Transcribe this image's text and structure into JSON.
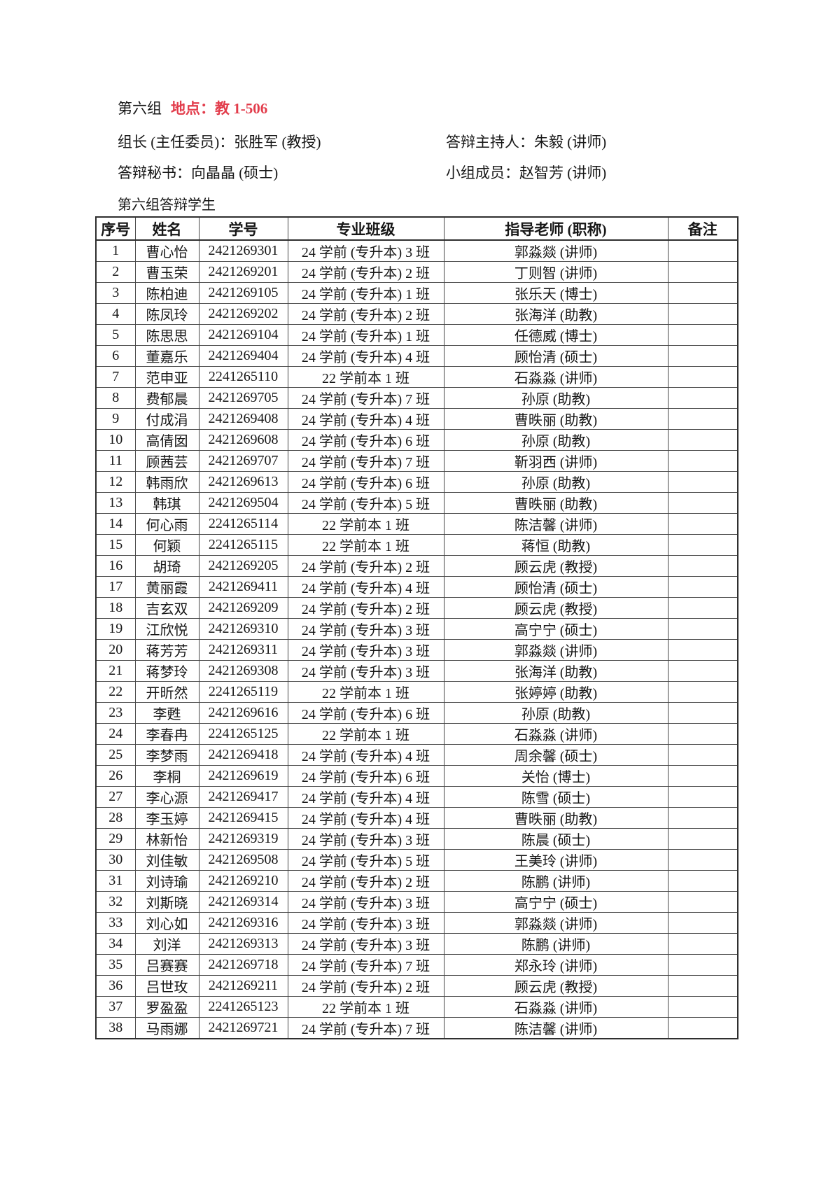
{
  "colors": {
    "location_red": "#e23c4b"
  },
  "header": {
    "group_label": "第六组",
    "location": "地点：教 1-506",
    "leader": "组长 (主任委员)：张胜军 (教授)",
    "host": "答辩主持人：朱毅 (讲师)",
    "secretary": "答辩秘书：向晶晶 (硕士)",
    "member": "小组成员：赵智芳 (讲师)",
    "table_title": "第六组答辩学生"
  },
  "table": {
    "headers": [
      "序号",
      "姓名",
      "学号",
      "专业班级",
      "指导老师 (职称)",
      "备注"
    ],
    "rows": [
      [
        "1",
        "曹心怡",
        "2421269301",
        "24 学前 (专升本) 3 班",
        "郭淼燚 (讲师)",
        ""
      ],
      [
        "2",
        "曹玉荣",
        "2421269201",
        "24 学前 (专升本) 2 班",
        "丁则智 (讲师)",
        ""
      ],
      [
        "3",
        "陈柏迪",
        "2421269105",
        "24 学前 (专升本) 1 班",
        "张乐天 (博士)",
        ""
      ],
      [
        "4",
        "陈凤玲",
        "2421269202",
        "24 学前 (专升本) 2 班",
        "张海洋 (助教)",
        ""
      ],
      [
        "5",
        "陈思思",
        "2421269104",
        "24 学前 (专升本) 1 班",
        "任德威 (博士)",
        ""
      ],
      [
        "6",
        "董嘉乐",
        "2421269404",
        "24 学前 (专升本) 4 班",
        "顾怡清 (硕士)",
        ""
      ],
      [
        "7",
        "范申亚",
        "2241265110",
        "22 学前本 1 班",
        "石淼淼 (讲师)",
        ""
      ],
      [
        "8",
        "费郁晨",
        "2421269705",
        "24 学前 (专升本) 7 班",
        "孙原 (助教)",
        ""
      ],
      [
        "9",
        "付成涓",
        "2421269408",
        "24 学前 (专升本) 4 班",
        "曹昳丽 (助教)",
        ""
      ],
      [
        "10",
        "高倩囡",
        "2421269608",
        "24 学前 (专升本) 6 班",
        "孙原 (助教)",
        ""
      ],
      [
        "11",
        "顾茜芸",
        "2421269707",
        "24 学前 (专升本) 7 班",
        "靳羽西 (讲师)",
        ""
      ],
      [
        "12",
        "韩雨欣",
        "2421269613",
        "24 学前 (专升本) 6 班",
        "孙原 (助教)",
        ""
      ],
      [
        "13",
        "韩琪",
        "2421269504",
        "24 学前 (专升本) 5 班",
        "曹昳丽 (助教)",
        ""
      ],
      [
        "14",
        "何心雨",
        "2241265114",
        "22 学前本 1 班",
        "陈洁馨 (讲师)",
        ""
      ],
      [
        "15",
        "何颖",
        "2241265115",
        "22 学前本 1 班",
        "蒋恒 (助教)",
        ""
      ],
      [
        "16",
        "胡琦",
        "2421269205",
        "24 学前 (专升本) 2 班",
        "顾云虎 (教授)",
        ""
      ],
      [
        "17",
        "黄丽霞",
        "2421269411",
        "24 学前 (专升本) 4 班",
        "顾怡清 (硕士)",
        ""
      ],
      [
        "18",
        "吉玄双",
        "2421269209",
        "24 学前 (专升本) 2 班",
        "顾云虎 (教授)",
        ""
      ],
      [
        "19",
        "江欣悦",
        "2421269310",
        "24 学前 (专升本) 3 班",
        "高宁宁 (硕士)",
        ""
      ],
      [
        "20",
        "蒋芳芳",
        "2421269311",
        "24 学前 (专升本) 3 班",
        "郭淼燚 (讲师)",
        ""
      ],
      [
        "21",
        "蒋梦玲",
        "2421269308",
        "24 学前 (专升本) 3 班",
        "张海洋 (助教)",
        ""
      ],
      [
        "22",
        "开昕然",
        "2241265119",
        "22 学前本 1 班",
        "张婷婷 (助教)",
        ""
      ],
      [
        "23",
        "李甦",
        "2421269616",
        "24 学前 (专升本) 6 班",
        "孙原 (助教)",
        ""
      ],
      [
        "24",
        "李春冉",
        "2241265125",
        "22 学前本 1 班",
        "石淼淼 (讲师)",
        ""
      ],
      [
        "25",
        "李梦雨",
        "2421269418",
        "24 学前 (专升本) 4 班",
        "周余馨 (硕士)",
        ""
      ],
      [
        "26",
        "李桐",
        "2421269619",
        "24 学前 (专升本) 6 班",
        "关怡 (博士)",
        ""
      ],
      [
        "27",
        "李心源",
        "2421269417",
        "24 学前 (专升本) 4 班",
        "陈雪 (硕士)",
        ""
      ],
      [
        "28",
        "李玉婷",
        "2421269415",
        "24 学前 (专升本) 4 班",
        "曹昳丽 (助教)",
        ""
      ],
      [
        "29",
        "林新怡",
        "2421269319",
        "24 学前 (专升本) 3 班",
        "陈晨 (硕士)",
        ""
      ],
      [
        "30",
        "刘佳敏",
        "2421269508",
        "24 学前 (专升本) 5 班",
        "王美玲 (讲师)",
        ""
      ],
      [
        "31",
        "刘诗瑜",
        "2421269210",
        "24 学前 (专升本) 2 班",
        "陈鹏 (讲师)",
        ""
      ],
      [
        "32",
        "刘斯晓",
        "2421269314",
        "24 学前 (专升本) 3 班",
        "高宁宁 (硕士)",
        ""
      ],
      [
        "33",
        "刘心如",
        "2421269316",
        "24 学前 (专升本) 3 班",
        "郭淼燚 (讲师)",
        ""
      ],
      [
        "34",
        "刘洋",
        "2421269313",
        "24 学前 (专升本) 3 班",
        "陈鹏 (讲师)",
        ""
      ],
      [
        "35",
        "吕赛赛",
        "2421269718",
        "24 学前 (专升本) 7 班",
        "郑永玲 (讲师)",
        ""
      ],
      [
        "36",
        "吕世玫",
        "2421269211",
        "24 学前 (专升本) 2 班",
        "顾云虎 (教授)",
        ""
      ],
      [
        "37",
        "罗盈盈",
        "2241265123",
        "22 学前本 1 班",
        "石淼淼 (讲师)",
        ""
      ],
      [
        "38",
        "马雨娜",
        "2421269721",
        "24 学前 (专升本) 7 班",
        "陈洁馨 (讲师)",
        ""
      ]
    ]
  }
}
